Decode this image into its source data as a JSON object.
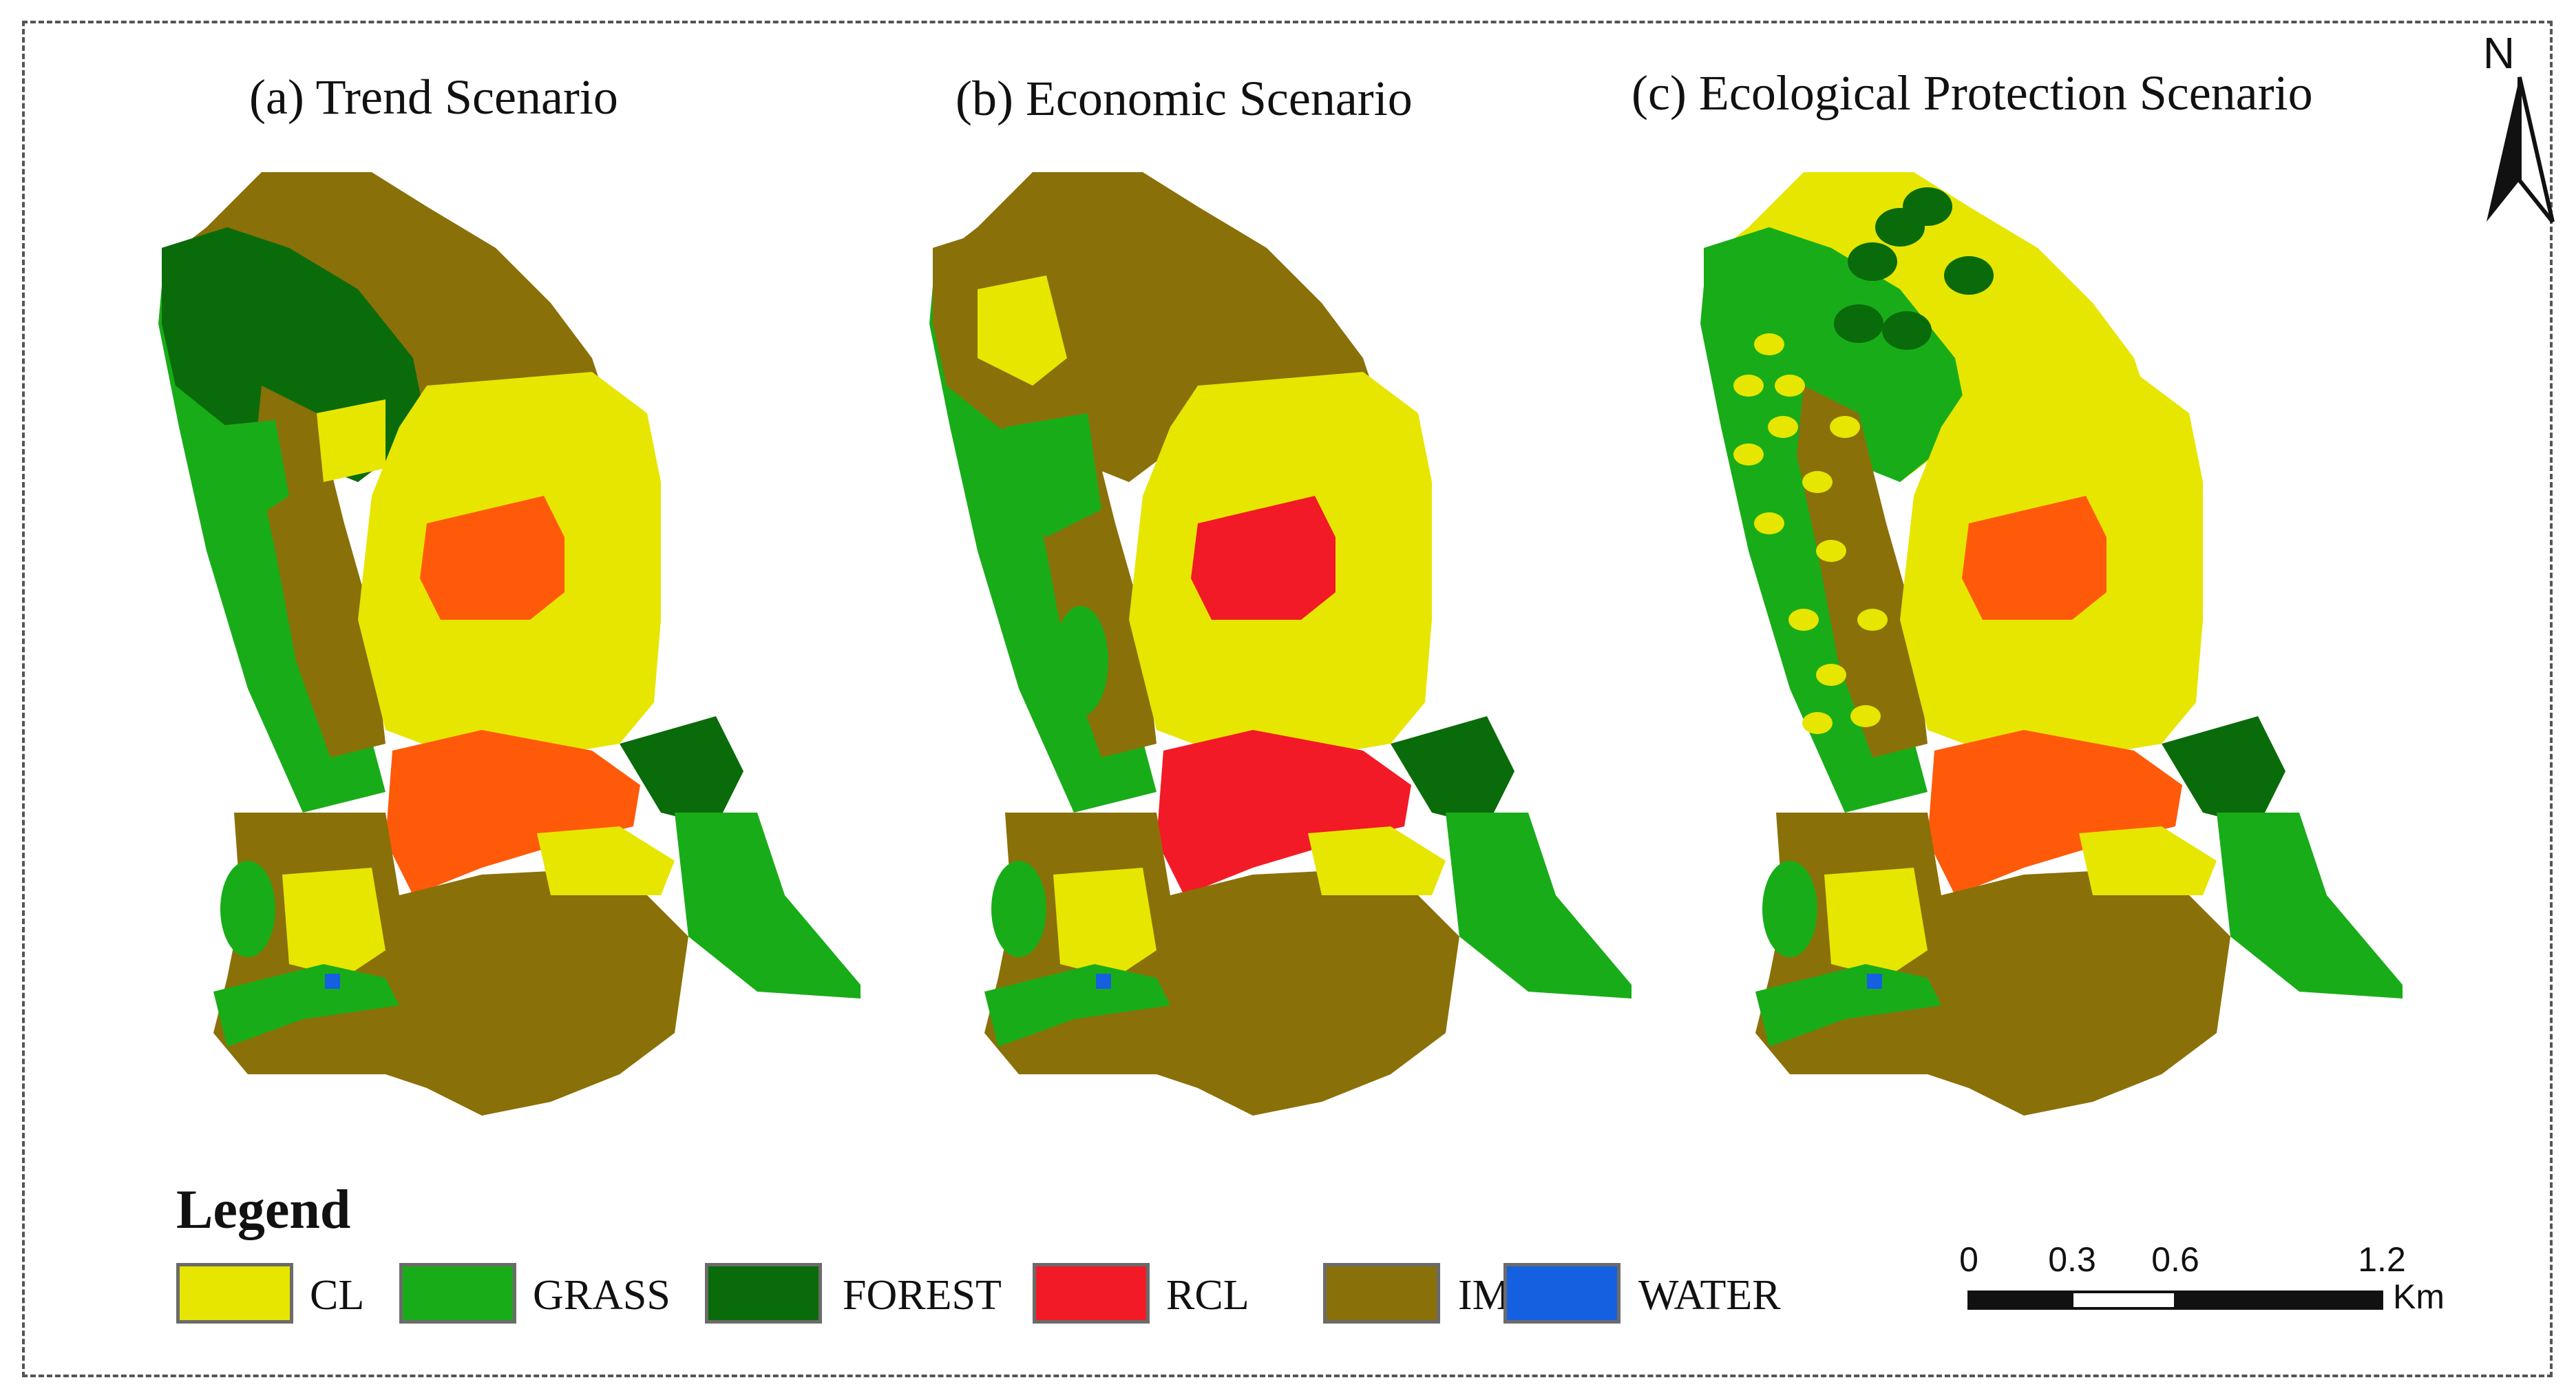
{
  "panels": [
    {
      "title": "(a) Trend Scenario",
      "variant": "trend"
    },
    {
      "title": "(b) Economic Scenario",
      "variant": "economic"
    },
    {
      "title": "(c) Ecological Protection Scenario",
      "variant": "eco"
    }
  ],
  "north_label": "N",
  "legend": {
    "title": "Legend",
    "items": [
      {
        "label": "CL",
        "color": "#e6e600"
      },
      {
        "label": "GRASS",
        "color": "#19ac19"
      },
      {
        "label": "FOREST",
        "color": "#0a6b0a"
      },
      {
        "label": "RCL",
        "color": "#f21a26"
      },
      {
        "label": "IML",
        "color": "#8a7008"
      },
      {
        "label": "WATER",
        "color": "#1560e0"
      }
    ]
  },
  "scalebar": {
    "ticks": [
      "0",
      "0.3",
      "0.6",
      "1.2"
    ],
    "unit": "Km"
  },
  "colors": {
    "rcl_trend": "#ff5a0a",
    "rcl_economic": "#f21a26",
    "rcl_eco": "#ff5a0a"
  }
}
